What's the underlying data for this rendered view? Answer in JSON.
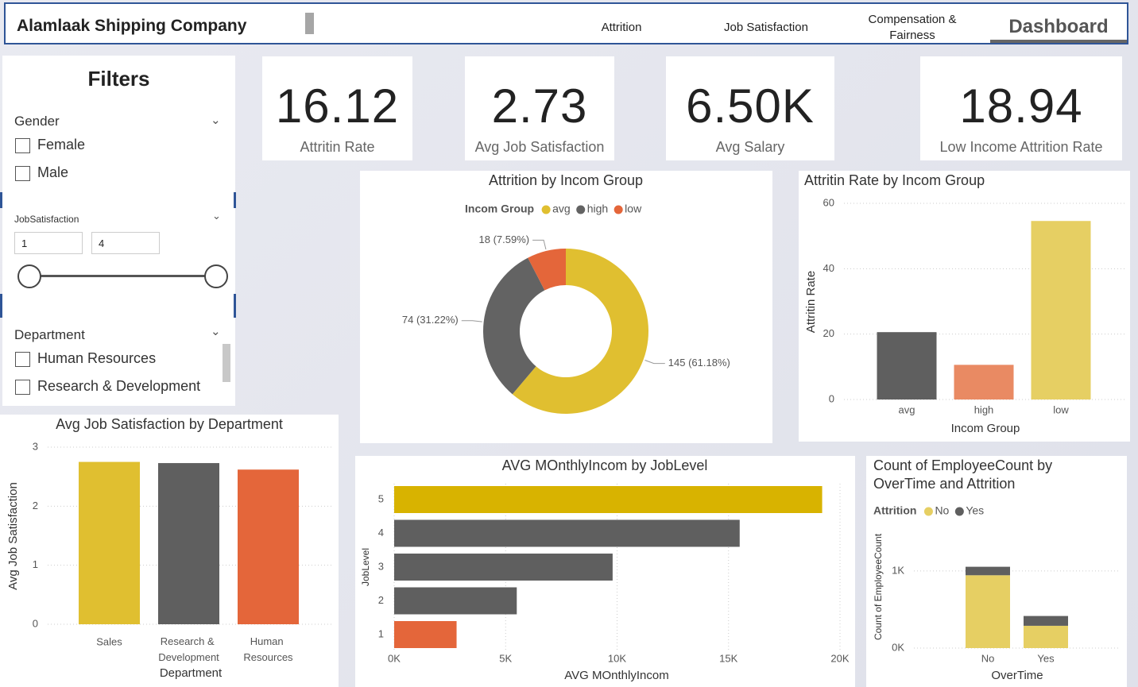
{
  "header": {
    "title": "Alamlaak Shipping Company",
    "nav": [
      "Attrition",
      "Job Satisfaction",
      "Compensation & Fairness",
      "Dashboard"
    ]
  },
  "filters": {
    "title": "Filters",
    "gender": {
      "label": "Gender",
      "options": [
        "Female",
        "Male"
      ]
    },
    "job_satisfaction": {
      "label": "JobSatisfaction",
      "min": "1",
      "max": "4"
    },
    "department": {
      "label": "Department",
      "options": [
        "Human Resources",
        "Research & Development"
      ]
    }
  },
  "kpis": [
    {
      "value": "16.12",
      "label": "Attritin Rate"
    },
    {
      "value": "2.73",
      "label": "Avg Job Satisfaction"
    },
    {
      "value": "6.50K",
      "label": "Avg Salary"
    },
    {
      "value": "18.94",
      "label": "Low Income Attrition Rate"
    }
  ],
  "chart_data": [
    {
      "type": "donut",
      "title": "Attrition by Incom Group",
      "legend_title": "Incom Group",
      "categories": [
        "avg",
        "high",
        "low"
      ],
      "values": [
        145,
        74,
        18
      ],
      "value_labels": [
        "145 (61.18%)",
        "74 (31.22%)",
        "18 (7.59%)"
      ],
      "colors": [
        "#e0bf30",
        "#636363",
        "#e4663a"
      ]
    },
    {
      "type": "bar",
      "title": "Attritin Rate by Incom Group",
      "categories": [
        "avg",
        "high",
        "low"
      ],
      "values": [
        20.6,
        10.6,
        54.6
      ],
      "colors": [
        "#5f5f5f",
        "#e98a63",
        "#e6cf63"
      ],
      "ylim": [
        0,
        60
      ],
      "yticks": [
        0,
        20,
        40,
        60
      ],
      "ylabel": "Attritin Rate",
      "xlabel": "Incom Group",
      "grid": true
    },
    {
      "type": "bar",
      "title": "Avg Job Satisfaction by Department",
      "categories": [
        "Sales",
        "Research & Development",
        "Human Resources"
      ],
      "values": [
        2.75,
        2.73,
        2.62
      ],
      "colors": [
        "#e0bf30",
        "#5f5f5f",
        "#e4663a"
      ],
      "ylim": [
        0,
        3
      ],
      "yticks": [
        0,
        1,
        2,
        3
      ],
      "ylabel": "Avg Job Satisfaction",
      "xlabel": "Department",
      "grid": true
    },
    {
      "type": "bar",
      "horizontal": true,
      "title": "AVG MOnthlyIncom by JobLevel",
      "categories": [
        "5",
        "4",
        "3",
        "2",
        "1"
      ],
      "values": [
        19200,
        15500,
        9800,
        5500,
        2800
      ],
      "colors": [
        "#d8b300",
        "#5f5f5f",
        "#5f5f5f",
        "#5f5f5f",
        "#e4663a"
      ],
      "xlim": [
        0,
        20000
      ],
      "xticks": [
        {
          "value": 0,
          "label": "0K"
        },
        {
          "value": 5000,
          "label": "5K"
        },
        {
          "value": 10000,
          "label": "10K"
        },
        {
          "value": 15000,
          "label": "15K"
        },
        {
          "value": 20000,
          "label": "20K"
        }
      ],
      "ylabel": "JobLevel",
      "xlabel": "AVG MOnthlyIncom",
      "grid": true
    },
    {
      "type": "bar",
      "stacked": true,
      "title": "Count of EmployeeCount by OverTime and Attrition",
      "legend_title": "Attrition",
      "categories": [
        "No",
        "Yes"
      ],
      "series": [
        {
          "name": "No",
          "color": "#e6cf63",
          "values": [
            944,
            289
          ]
        },
        {
          "name": "Yes",
          "color": "#5f5f5f",
          "values": [
            110,
            127
          ]
        }
      ],
      "ylim": [
        0,
        1400
      ],
      "yticks": [
        {
          "value": 0,
          "label": "0K"
        },
        {
          "value": 1000,
          "label": "1K"
        }
      ],
      "ylabel": "Count of EmployeeCount",
      "xlabel": "OverTime",
      "grid": true
    }
  ]
}
